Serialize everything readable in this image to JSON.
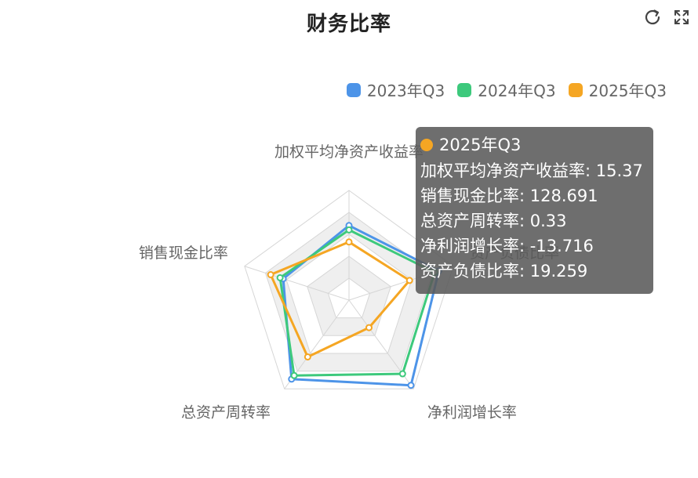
{
  "page": {
    "title": "财务比率"
  },
  "toolbar": {
    "refresh_icon": "refresh-icon",
    "fullscreen_icon": "fullscreen-icon"
  },
  "colors": {
    "2023年Q3": "#4d94e8",
    "2024年Q3": "#3dc97c",
    "2025年Q3": "#f5a623",
    "grid_line": "#d6d6d6",
    "grid_band": "#efefef"
  },
  "legend": [
    {
      "name": "2023年Q3",
      "color": "#4d94e8"
    },
    {
      "name": "2024年Q3",
      "color": "#3dc97c"
    },
    {
      "name": "2025年Q3",
      "color": "#f5a623"
    }
  ],
  "chart_data": {
    "type": "radar",
    "title": "财务比率",
    "indicators": [
      "加权平均净资产收益率",
      "资产负债比率",
      "净利润增长率",
      "总资产周转率",
      "销售现金比率"
    ],
    "series": [
      {
        "name": "2023年Q3",
        "values": [
          0.68,
          0.86,
          0.96,
          0.89,
          0.63
        ]
      },
      {
        "name": "2024年Q3",
        "values": [
          0.64,
          0.82,
          0.83,
          0.85,
          0.66
        ]
      },
      {
        "name": "2025年Q3",
        "values": [
          0.53,
          0.58,
          0.31,
          0.64,
          0.75
        ]
      }
    ],
    "value_scale": "normalized-per-indicator",
    "split_rings": 5,
    "legend_position": "top-right",
    "tooltip": {
      "series": "2025年Q3",
      "rows": [
        {
          "label": "加权平均净资产收益率",
          "value": "15.37"
        },
        {
          "label": "销售现金比率",
          "value": "128.691"
        },
        {
          "label": "总资产周转率",
          "value": "0.33"
        },
        {
          "label": "净利润增长率",
          "value": "-13.716"
        },
        {
          "label": "资产负债比率",
          "value": "19.259"
        }
      ]
    }
  }
}
